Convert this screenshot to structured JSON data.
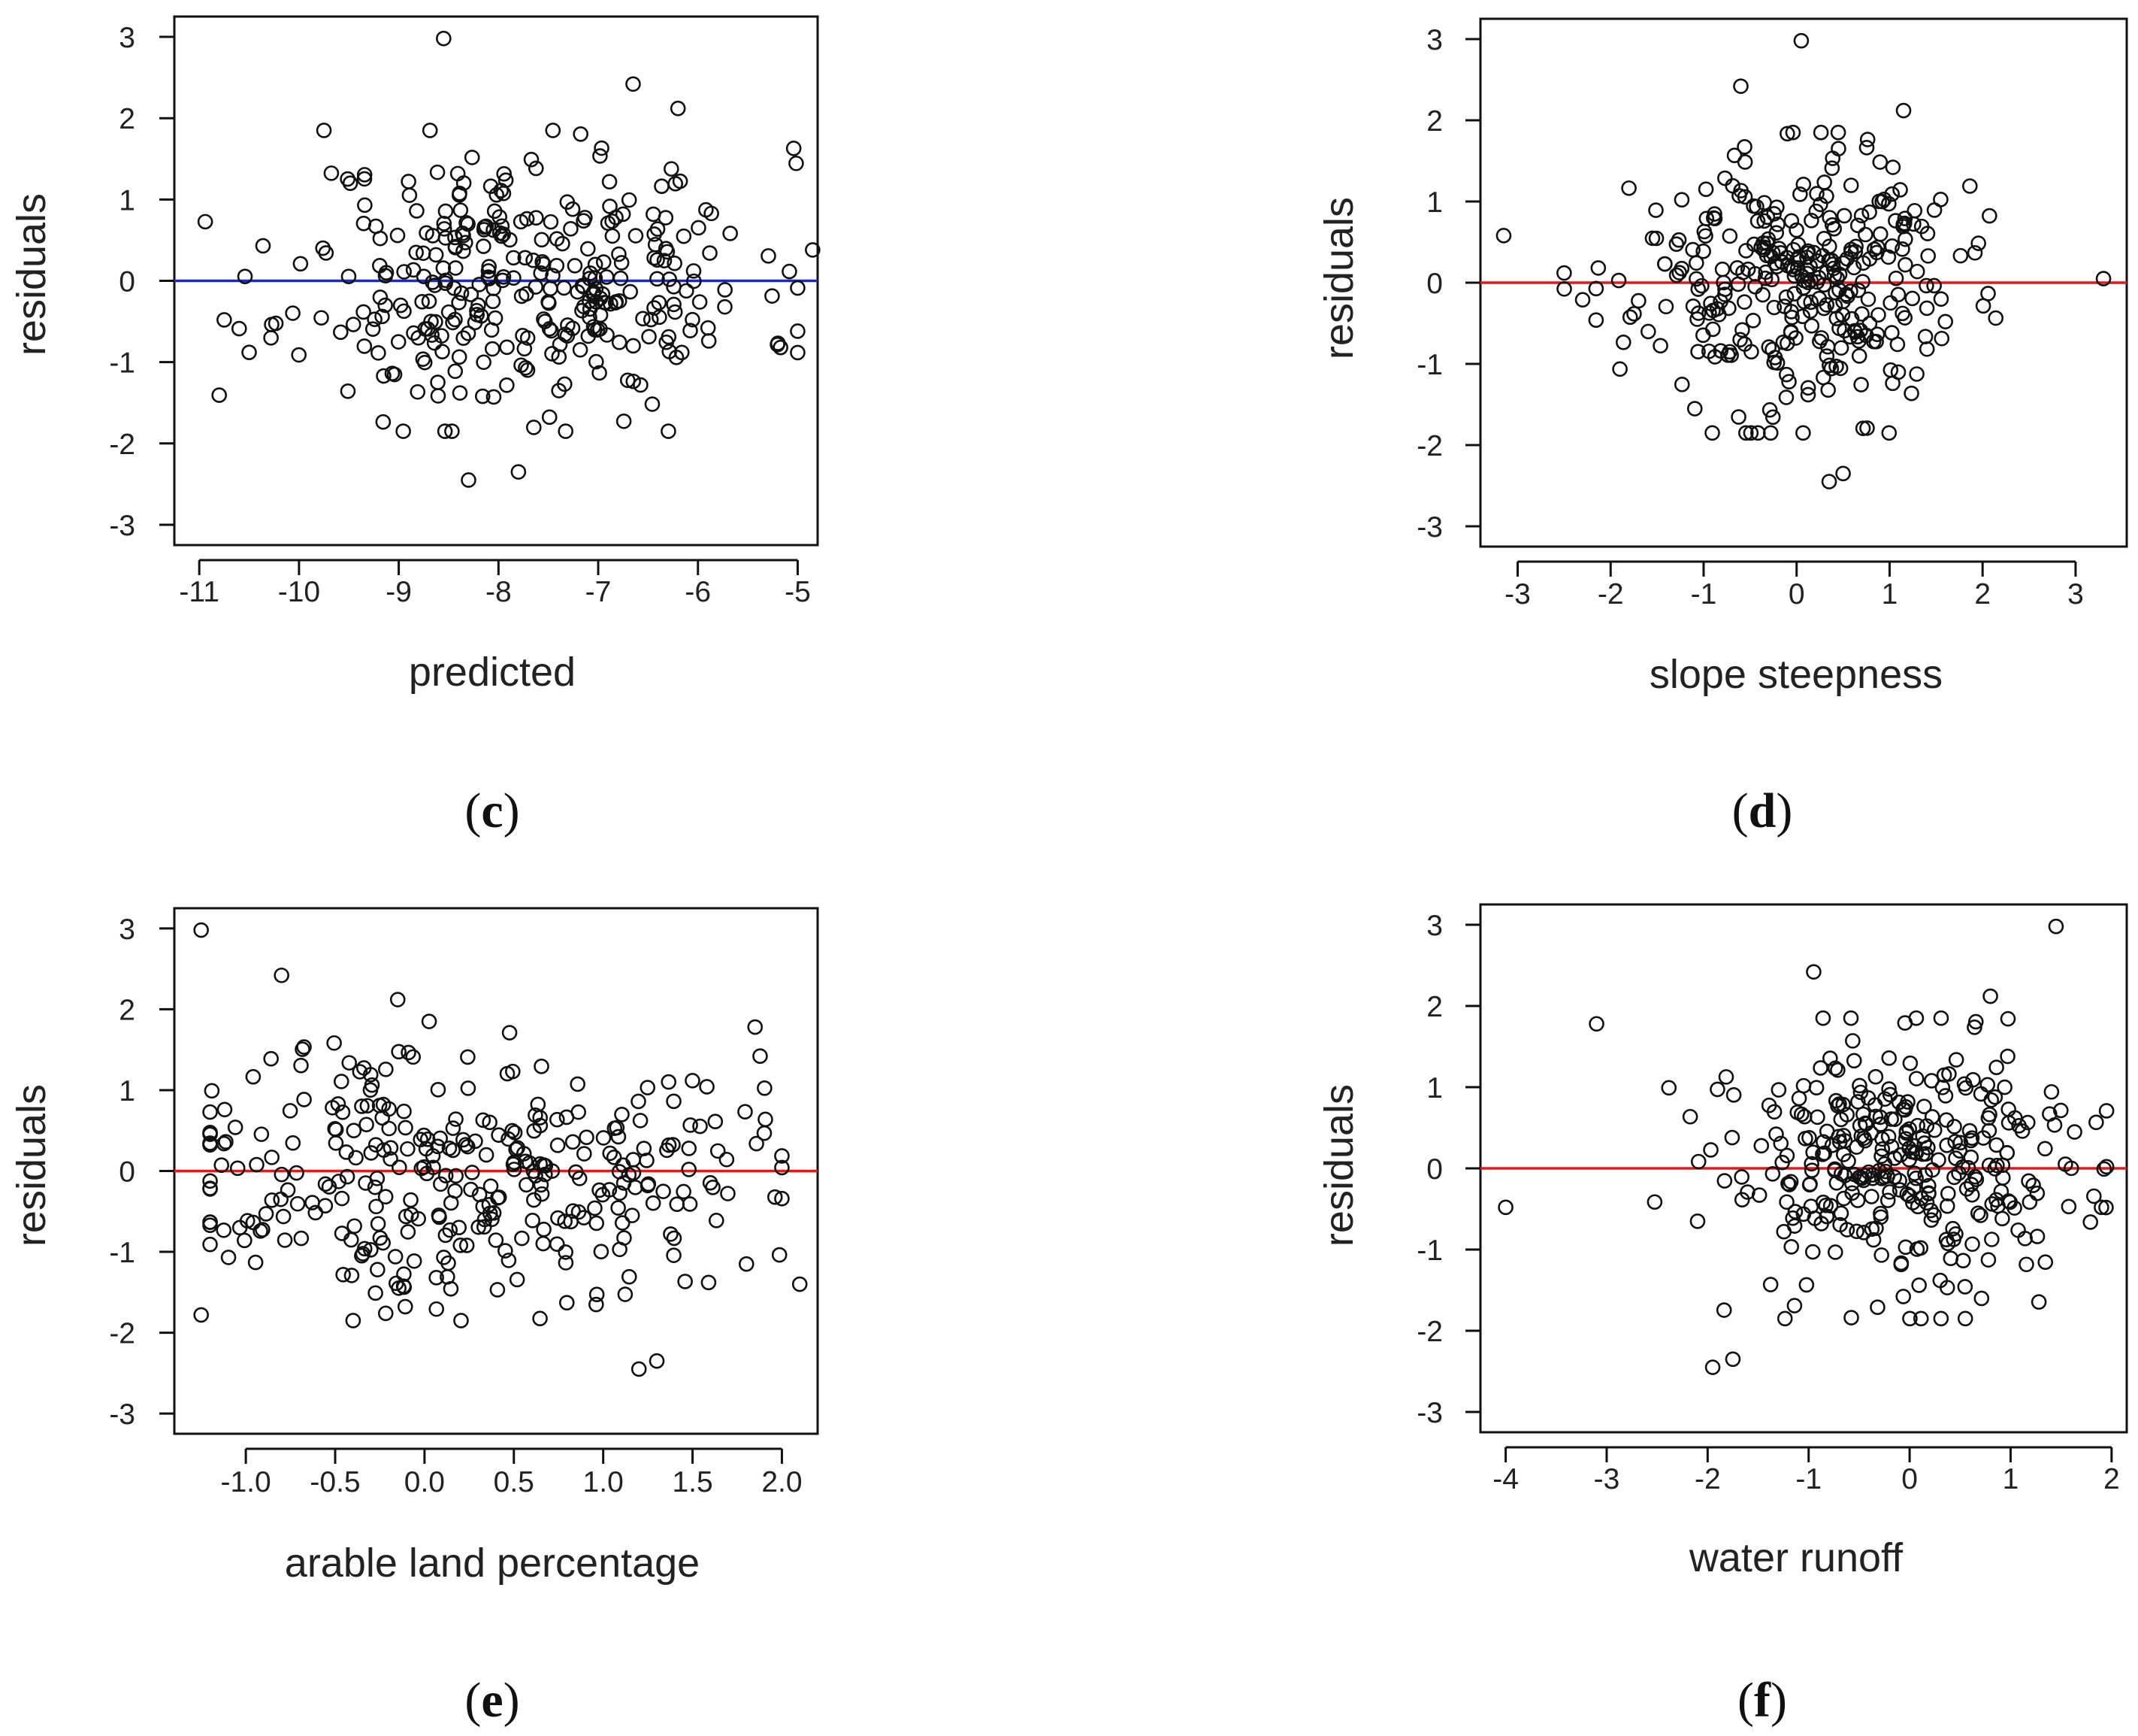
{
  "chart_data": [
    {
      "id": "c",
      "type": "scatter",
      "panel_label": "c",
      "xlabel": "predicted",
      "ylabel": "residuals",
      "xlim": [
        -11.25,
        -4.8
      ],
      "ylim": [
        -3.25,
        3.25
      ],
      "xticks": [
        -11,
        -10,
        -9,
        -8,
        -7,
        -6,
        -5
      ],
      "yticks": [
        -3,
        -2,
        -1,
        0,
        1,
        2,
        3
      ],
      "xtick_labels": [
        "-11",
        "-10",
        "-9",
        "-8",
        "-7",
        "-6",
        "-5"
      ],
      "ytick_labels": [
        "-3",
        "-2",
        "-1",
        "0",
        "1",
        "2",
        "3"
      ],
      "reference_line": {
        "y": 0,
        "color": "#1f2bb5"
      },
      "marker": "open-circle",
      "series": [
        {
          "name": "residuals",
          "seed": 11,
          "count": 330,
          "x_center": -7.7,
          "x_spread": 1.15,
          "y_spread": 0.82
        }
      ],
      "notable_points": [
        [
          -8.55,
          2.98
        ],
        [
          -6.65,
          2.42
        ],
        [
          -6.2,
          2.12
        ],
        [
          -8.3,
          -2.45
        ],
        [
          -7.8,
          -2.35
        ],
        [
          -10.75,
          -0.48
        ],
        [
          -10.5,
          -0.88
        ],
        [
          -4.85,
          0.38
        ]
      ]
    },
    {
      "id": "d",
      "type": "scatter",
      "panel_label": "d",
      "xlabel": "slope steepness",
      "ylabel": "residuals",
      "xlim": [
        -3.4,
        3.55
      ],
      "ylim": [
        -3.25,
        3.25
      ],
      "xticks": [
        -3,
        -2,
        -1,
        0,
        1,
        2,
        3
      ],
      "yticks": [
        -3,
        -2,
        -1,
        0,
        1,
        2,
        3
      ],
      "xtick_labels": [
        "-3",
        "-2",
        "-1",
        "0",
        "1",
        "2",
        "3"
      ],
      "ytick_labels": [
        "-3",
        "-2",
        "-1",
        "0",
        "1",
        "2",
        "3"
      ],
      "reference_line": {
        "y": 0,
        "color": "#e01b1b"
      },
      "marker": "open-circle",
      "series": [
        {
          "name": "residuals",
          "seed": 23,
          "count": 330,
          "x_center": 0.0,
          "x_spread": 0.85,
          "y_spread": 0.8
        }
      ],
      "notable_points": [
        [
          0.05,
          2.98
        ],
        [
          -0.6,
          2.42
        ],
        [
          1.15,
          2.12
        ],
        [
          0.35,
          -2.45
        ],
        [
          0.5,
          -2.35
        ],
        [
          -3.15,
          0.58
        ],
        [
          3.3,
          0.05
        ],
        [
          -2.5,
          0.12
        ]
      ]
    },
    {
      "id": "e",
      "type": "scatter",
      "panel_label": "e",
      "xlabel": "arable land percentage",
      "ylabel": "residuals",
      "xlim": [
        -1.4,
        2.2
      ],
      "ylim": [
        -3.25,
        3.25
      ],
      "xticks": [
        -1.0,
        -0.5,
        0.0,
        0.5,
        1.0,
        1.5,
        2.0
      ],
      "yticks": [
        -3,
        -2,
        -1,
        0,
        1,
        2,
        3
      ],
      "xtick_labels": [
        "-1.0",
        "-0.5",
        "0.0",
        "0.5",
        "1.0",
        "1.5",
        "2.0"
      ],
      "ytick_labels": [
        "-3",
        "-2",
        "-1",
        "0",
        "1",
        "2",
        "3"
      ],
      "reference_line": {
        "y": 0,
        "color": "#e01b1b"
      },
      "marker": "open-circle",
      "series": [
        {
          "name": "residuals",
          "seed": 37,
          "count": 330,
          "x_center": 0.2,
          "x_spread": 0.8,
          "y_spread": 0.8
        }
      ],
      "notable_points": [
        [
          -1.25,
          2.98
        ],
        [
          -0.8,
          2.42
        ],
        [
          -0.15,
          2.12
        ],
        [
          1.2,
          -2.45
        ],
        [
          1.3,
          -2.35
        ],
        [
          2.1,
          -1.4
        ],
        [
          1.85,
          1.78
        ],
        [
          -1.25,
          -1.78
        ]
      ]
    },
    {
      "id": "f",
      "type": "scatter",
      "panel_label": "f",
      "xlabel": "water runoff",
      "ylabel": "residuals",
      "xlim": [
        -4.25,
        2.15
      ],
      "ylim": [
        -3.25,
        3.25
      ],
      "xticks": [
        -4,
        -3,
        -2,
        -1,
        0,
        1,
        2
      ],
      "yticks": [
        -3,
        -2,
        -1,
        0,
        1,
        2,
        3
      ],
      "xtick_labels": [
        "-4",
        "-3",
        "-2",
        "-1",
        "0",
        "1",
        "2"
      ],
      "ytick_labels": [
        "-3",
        "-2",
        "-1",
        "0",
        "1",
        "2",
        "3"
      ],
      "reference_line": {
        "y": 0,
        "color": "#e01b1b"
      },
      "marker": "open-circle",
      "series": [
        {
          "name": "residuals",
          "seed": 53,
          "count": 330,
          "x_center": 0.0,
          "x_spread": 0.95,
          "y_spread": 0.8
        }
      ],
      "notable_points": [
        [
          1.45,
          2.98
        ],
        [
          -0.95,
          2.42
        ],
        [
          0.8,
          2.12
        ],
        [
          -1.95,
          -2.45
        ],
        [
          -1.75,
          -2.35
        ],
        [
          -4.0,
          -0.48
        ],
        [
          -3.1,
          1.78
        ],
        [
          1.9,
          -0.48
        ]
      ]
    }
  ]
}
